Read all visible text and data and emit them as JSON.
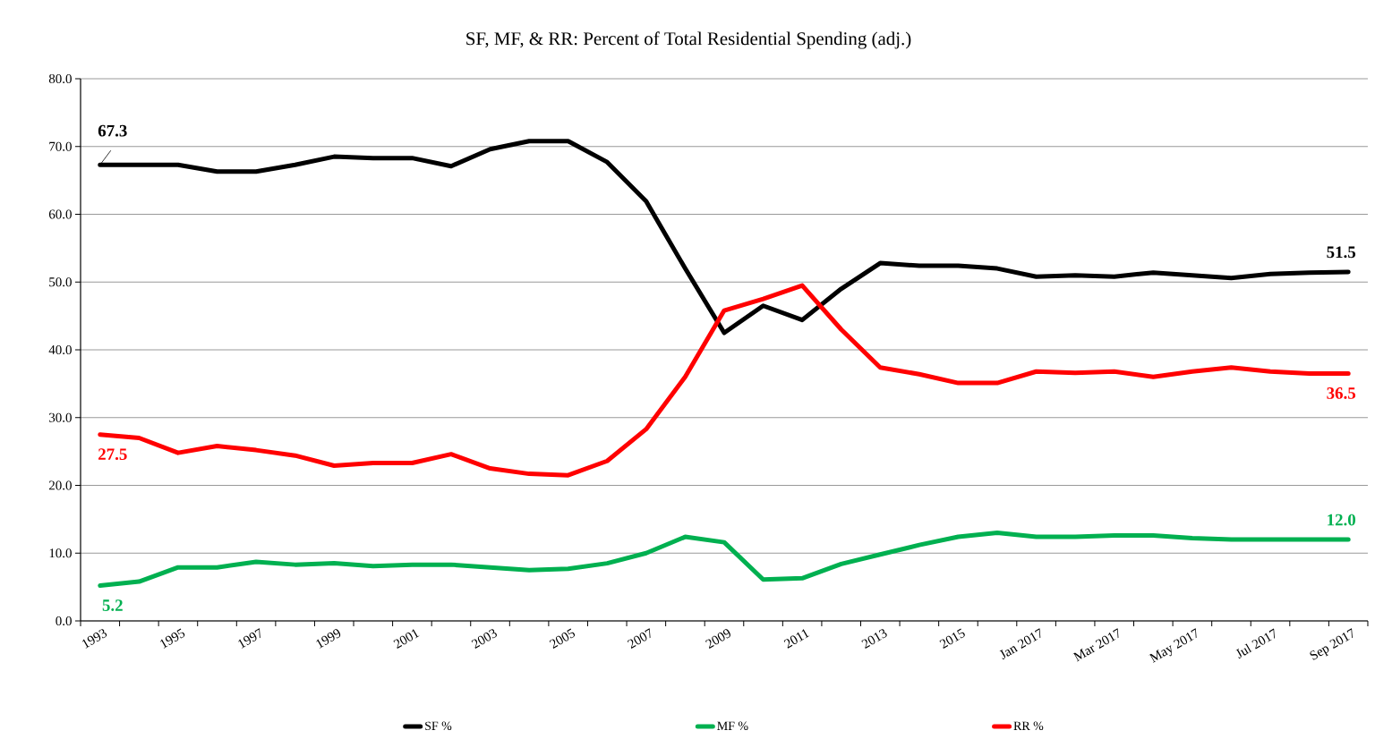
{
  "chart_data": {
    "type": "line",
    "title": "SF, MF, & RR: Percent of Total Residential Spending (adj.)",
    "categories": [
      "1993",
      null,
      "1995",
      null,
      "1997",
      null,
      "1999",
      null,
      "2001",
      null,
      "2003",
      null,
      "2005",
      null,
      "2007",
      null,
      "2009",
      null,
      "2011",
      null,
      "2013",
      null,
      "2015",
      null,
      "Jan 2017",
      null,
      "Mar 2017",
      null,
      "May 2017",
      null,
      "Jul 2017",
      null,
      "Sep 2017"
    ],
    "series": [
      {
        "name": "SF %",
        "color": "#000000",
        "values": [
          67.3,
          67.3,
          67.3,
          66.3,
          66.3,
          67.3,
          68.5,
          68.3,
          68.3,
          67.1,
          69.6,
          70.8,
          70.8,
          67.7,
          61.9,
          52.0,
          42.5,
          46.5,
          44.4,
          49.0,
          52.8,
          52.4,
          52.4,
          52.0,
          50.8,
          51.0,
          50.8,
          51.4,
          51.0,
          50.6,
          51.2,
          51.4,
          51.5
        ],
        "value_labels": [
          "67.3",
          null,
          null,
          null,
          null,
          null,
          null,
          null,
          null,
          null,
          null,
          null,
          null,
          null,
          null,
          null,
          null,
          null,
          null,
          null,
          null,
          null,
          null,
          null,
          null,
          null,
          null,
          null,
          null,
          null,
          null,
          null,
          "51.5"
        ]
      },
      {
        "name": "MF %",
        "color": "#00b050",
        "values": [
          5.2,
          5.8,
          7.9,
          7.9,
          8.7,
          8.3,
          8.5,
          8.1,
          8.3,
          8.3,
          7.9,
          7.5,
          7.7,
          8.5,
          10.0,
          12.4,
          11.6,
          6.1,
          6.3,
          8.4,
          9.8,
          11.2,
          12.4,
          13.0,
          12.4,
          12.4,
          12.6,
          12.6,
          12.2,
          12.0,
          12.0,
          12.0,
          12.0
        ],
        "value_labels": [
          "5.2",
          null,
          null,
          null,
          null,
          null,
          null,
          null,
          null,
          null,
          null,
          null,
          null,
          null,
          null,
          null,
          null,
          null,
          null,
          null,
          null,
          null,
          null,
          null,
          null,
          null,
          null,
          null,
          null,
          null,
          null,
          null,
          "12.0"
        ]
      },
      {
        "name": "RR %",
        "color": "#ff0000",
        "values": [
          27.5,
          27.0,
          24.8,
          25.8,
          25.2,
          24.4,
          22.9,
          23.3,
          23.3,
          24.6,
          22.5,
          21.7,
          21.5,
          23.6,
          28.3,
          36.0,
          45.8,
          47.5,
          49.5,
          43.0,
          37.4,
          36.4,
          35.1,
          35.1,
          36.8,
          36.6,
          36.8,
          36.0,
          36.8,
          37.4,
          36.8,
          36.5,
          36.5
        ],
        "value_labels": [
          "27.5",
          null,
          null,
          null,
          null,
          null,
          null,
          null,
          null,
          null,
          null,
          null,
          null,
          null,
          null,
          null,
          null,
          null,
          null,
          null,
          null,
          null,
          null,
          null,
          null,
          null,
          null,
          null,
          null,
          null,
          null,
          null,
          "36.5"
        ]
      }
    ],
    "ylim": [
      0,
      80
    ],
    "yticks": [
      {
        "value": 0,
        "label": "0.0"
      },
      {
        "value": 10,
        "label": "10.0"
      },
      {
        "value": 20,
        "label": "20.0"
      },
      {
        "value": 30,
        "label": "30.0"
      },
      {
        "value": 40,
        "label": "40.0"
      },
      {
        "value": 50,
        "label": "50.0"
      },
      {
        "value": 60,
        "label": "60.0"
      },
      {
        "value": 70,
        "label": "70.0"
      },
      {
        "value": 80,
        "label": "80.0"
      }
    ],
    "grid": "y",
    "legend": "bottom",
    "marker": "none"
  }
}
